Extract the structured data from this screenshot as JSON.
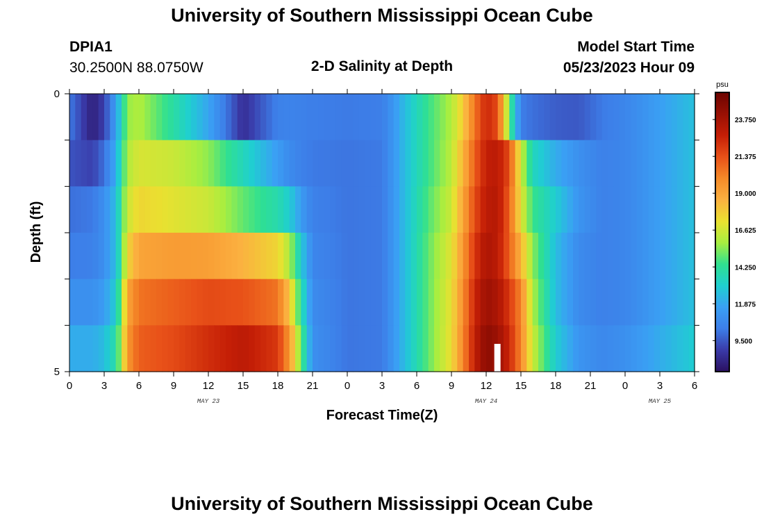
{
  "header": {
    "title": "University of Southern Mississippi Ocean Cube",
    "station_id": "DPIA1",
    "station_coords": "30.2500N  88.0750W",
    "chart_title": "2-D Salinity at Depth",
    "model_start_label": "Model Start Time",
    "model_start_value": "05/23/2023 Hour 09"
  },
  "footer": {
    "title": "University of Southern Mississippi Ocean Cube"
  },
  "colors": {
    "colormap": [
      "#2a1060",
      "#3a3aa8",
      "#3d7ee8",
      "#3aa0f4",
      "#1fcfd0",
      "#30e090",
      "#a8ee40",
      "#eae030",
      "#fbb040",
      "#f58a28",
      "#e85018",
      "#c41e06",
      "#981004",
      "#6c0400"
    ]
  },
  "chart_data": {
    "type": "heatmap",
    "title": "2-D Salinity at Depth",
    "xlabel": "Forecast Time(Z)",
    "ylabel": "Depth (ft)",
    "x_tick_labels": [
      "0",
      "3",
      "6",
      "9",
      "12",
      "15",
      "18",
      "21",
      "0",
      "3",
      "6",
      "9",
      "12",
      "15",
      "18",
      "21",
      "0",
      "3",
      "6"
    ],
    "x_date_labels": [
      {
        "label": "MAY 23",
        "hour": 12
      },
      {
        "label": "MAY 24",
        "hour": 36
      },
      {
        "label": "MAY 25",
        "hour": 51
      }
    ],
    "x_range_hours": [
      0,
      54
    ],
    "y_range_ft": [
      0,
      5
    ],
    "y_tick_labels": [
      "0",
      "5"
    ],
    "depth_layers": 5,
    "colorbar": {
      "unit": "psu",
      "range": [
        7.5,
        25.5
      ],
      "tick_values": [
        9.5,
        11.875,
        14.25,
        16.625,
        19.0,
        21.375,
        23.75
      ],
      "tick_labels": [
        "9.500",
        "11.875",
        "14.250",
        "16.625",
        "19.000",
        "21.375",
        "23.750"
      ]
    },
    "salinity_key_times_hours": [
      0,
      2,
      3,
      4,
      4.5,
      5,
      6,
      9,
      12,
      15,
      18,
      19,
      20,
      21,
      24,
      27,
      28,
      29,
      31,
      33,
      34,
      35,
      36,
      37,
      38,
      39,
      40,
      42,
      44,
      46,
      48,
      51,
      54
    ],
    "salinity_by_layer_psu": [
      [
        10.2,
        8.0,
        9.0,
        11.5,
        13.5,
        15.6,
        16.0,
        14.0,
        11.8,
        8.5,
        10.4,
        10.5,
        10.4,
        10.3,
        10.2,
        10.3,
        11.3,
        12.5,
        14.5,
        16.0,
        17.8,
        20.5,
        22.5,
        21.5,
        15.0,
        10.3,
        10.0,
        9.6,
        9.5,
        10.2,
        10.6,
        11.6,
        12.6
      ],
      [
        9.4,
        9.0,
        10.0,
        12.0,
        14.0,
        16.0,
        16.8,
        16.5,
        15.5,
        13.5,
        11.5,
        10.8,
        10.4,
        10.2,
        10.1,
        10.2,
        11.3,
        12.5,
        14.5,
        16.2,
        18.5,
        21.0,
        22.8,
        23.0,
        21.5,
        16.5,
        13.5,
        12.0,
        11.0,
        10.4,
        10.6,
        11.6,
        12.6
      ],
      [
        10.0,
        10.2,
        11.0,
        12.5,
        14.5,
        16.5,
        17.5,
        17.0,
        16.5,
        15.0,
        13.8,
        13.0,
        11.5,
        10.4,
        10.1,
        10.2,
        11.3,
        12.5,
        14.8,
        16.5,
        19.0,
        21.5,
        23.0,
        23.2,
        21.0,
        17.0,
        14.5,
        13.0,
        11.2,
        10.4,
        10.6,
        11.6,
        12.6
      ],
      [
        10.3,
        10.4,
        11.0,
        12.5,
        14.5,
        17.5,
        19.0,
        19.3,
        19.2,
        18.5,
        17.5,
        16.0,
        13.0,
        10.6,
        10.1,
        10.2,
        11.3,
        12.5,
        15.0,
        17.0,
        19.5,
        22.0,
        23.5,
        23.0,
        21.0,
        18.5,
        15.5,
        12.5,
        10.8,
        10.4,
        10.6,
        11.6,
        12.6
      ],
      [
        11.0,
        11.0,
        11.5,
        13.0,
        15.5,
        19.0,
        20.5,
        21.0,
        21.5,
        21.3,
        20.5,
        18.0,
        14.0,
        10.8,
        10.1,
        10.2,
        11.3,
        12.5,
        15.0,
        17.2,
        19.8,
        22.5,
        24.0,
        23.5,
        22.0,
        20.0,
        16.0,
        12.5,
        10.8,
        10.4,
        10.6,
        11.6,
        12.6
      ],
      [
        12.0,
        12.0,
        12.5,
        14.0,
        16.0,
        19.5,
        21.0,
        21.5,
        22.3,
        23.0,
        22.0,
        19.5,
        15.0,
        11.0,
        10.1,
        10.2,
        11.3,
        12.5,
        15.0,
        17.3,
        20.0,
        22.8,
        24.5,
        24.0,
        22.5,
        20.0,
        16.5,
        13.0,
        11.2,
        10.7,
        11.0,
        12.0,
        13.0
      ]
    ]
  }
}
